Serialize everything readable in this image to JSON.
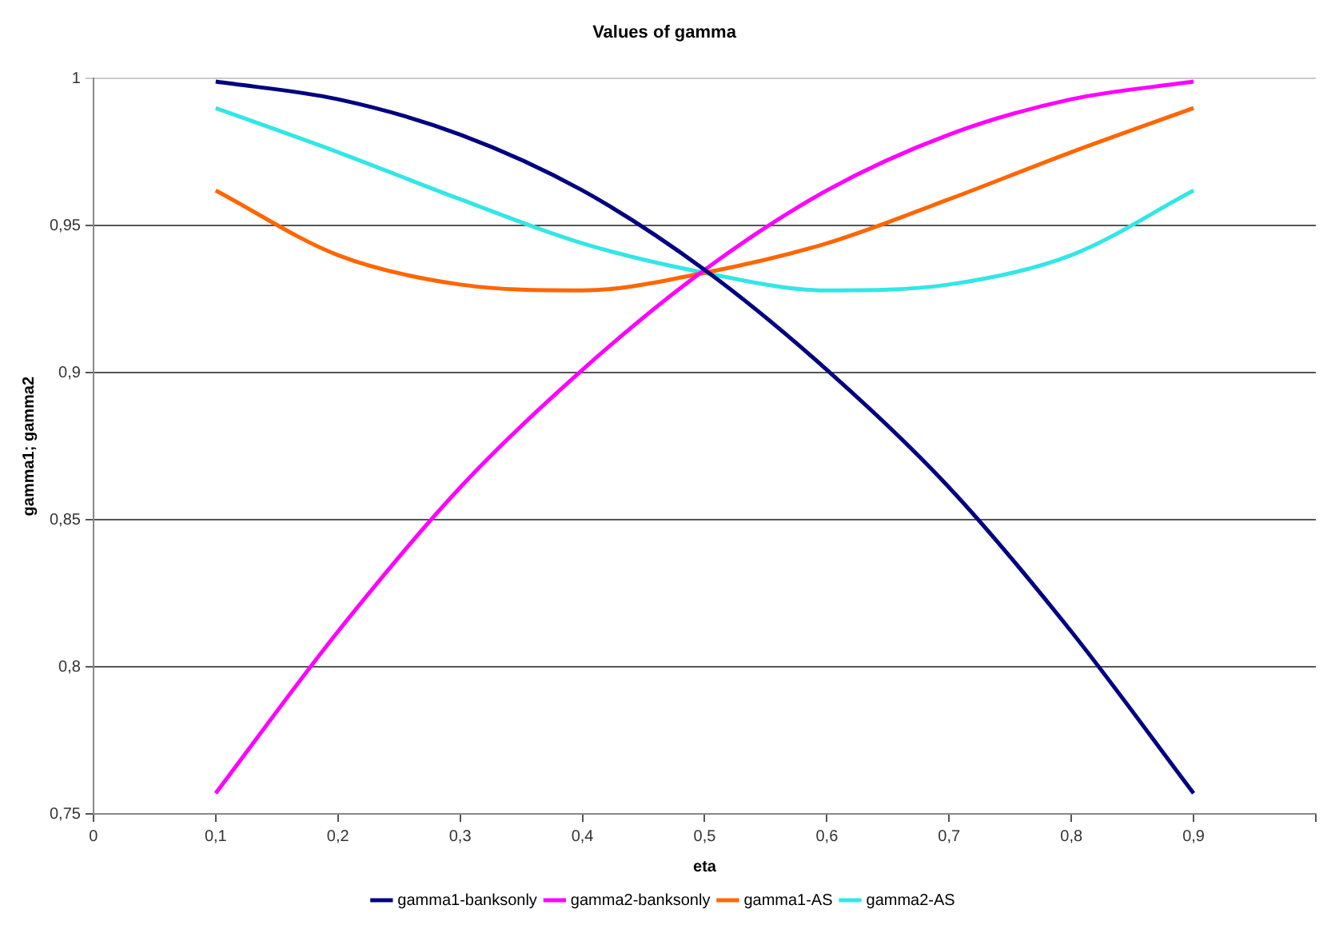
{
  "chart_data": {
    "type": "line",
    "title": "Values of gamma",
    "xlabel": "eta",
    "ylabel": "gamma1; gamma2",
    "x": [
      0.1,
      0.2,
      0.3,
      0.4,
      0.5,
      0.6,
      0.7,
      0.8,
      0.9
    ],
    "series": [
      {
        "name": "gamma1-banksonly",
        "color": "#000080",
        "values": [
          0.999,
          0.993,
          0.981,
          0.962,
          0.935,
          0.901,
          0.861,
          0.812,
          0.757
        ]
      },
      {
        "name": "gamma2-banksonly",
        "color": "#ff00ff",
        "values": [
          0.757,
          0.812,
          0.861,
          0.901,
          0.935,
          0.962,
          0.981,
          0.993,
          0.999
        ]
      },
      {
        "name": "gamma1-AS",
        "color": "#ff6600",
        "values": [
          0.962,
          0.94,
          0.93,
          0.928,
          0.934,
          0.944,
          0.959,
          0.975,
          0.99
        ]
      },
      {
        "name": "gamma2-AS",
        "color": "#33e6e6",
        "values": [
          0.99,
          0.975,
          0.959,
          0.944,
          0.934,
          0.928,
          0.93,
          0.94,
          0.962
        ]
      }
    ],
    "xlim": [
      0,
      1
    ],
    "xticks": [
      0,
      {
        "value": 0.1,
        "label": "0,1"
      },
      {
        "value": 0.2,
        "label": "0,2"
      },
      {
        "value": 0.3,
        "label": "0,3"
      },
      {
        "value": 0.4,
        "label": "0,4"
      },
      {
        "value": 0.5,
        "label": "0,5"
      },
      {
        "value": 0.6,
        "label": "0,6"
      },
      {
        "value": 0.7,
        "label": "0,7"
      },
      {
        "value": 0.8,
        "label": "0,8"
      },
      {
        "value": 0.9,
        "label": "0,9"
      },
      {
        "value": 1,
        "label": null
      }
    ],
    "ylim": [
      0.75,
      1
    ],
    "yticks": [
      {
        "value": 0.75,
        "label": "0,75"
      },
      {
        "value": 0.8,
        "label": "0,8"
      },
      {
        "value": 0.85,
        "label": "0,85"
      },
      {
        "value": 0.9,
        "label": "0,9"
      },
      {
        "value": 0.95,
        "label": "0,95"
      },
      1
    ],
    "grid": "y",
    "legend": "bottom",
    "marker": "none",
    "line_style": "solid"
  }
}
